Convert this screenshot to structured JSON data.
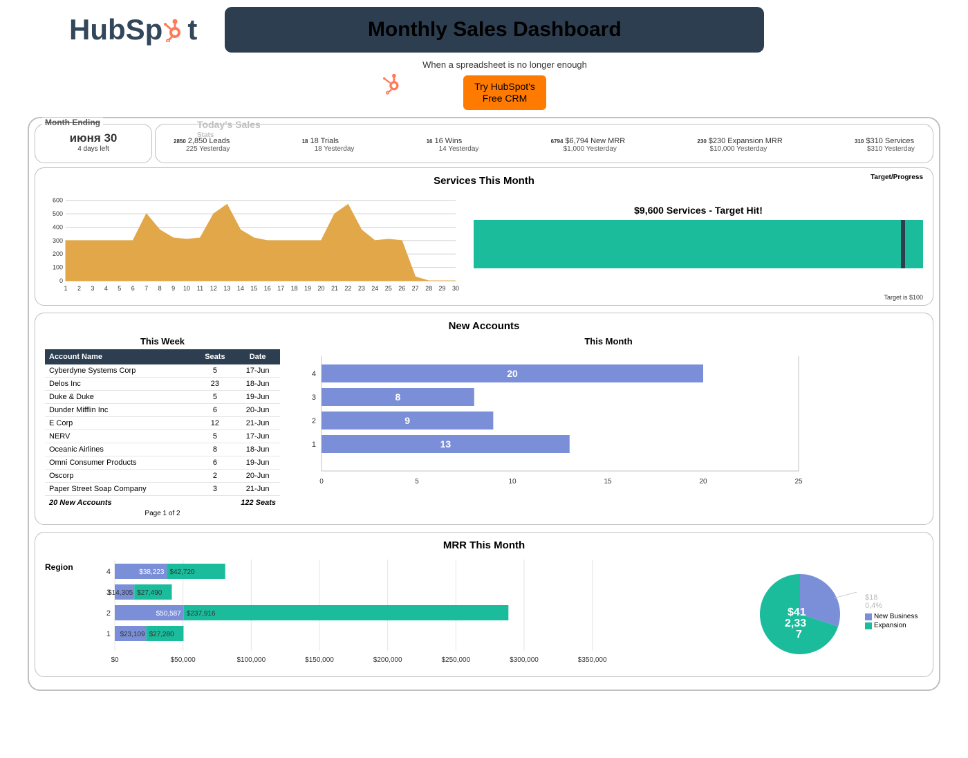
{
  "header": {
    "logo_text_1": "HubSp",
    "logo_text_2": "t",
    "title": "Monthly Sales Dashboard",
    "tagline": "When a spreadsheet is no longer enough",
    "cta_line1": "Try HubSpot's",
    "cta_line2": "Free CRM",
    "brand_orange": "#ff7a59",
    "brand_dark": "#33475b",
    "banner_bg": "#2c3e50"
  },
  "month_ending": {
    "label": "Month Ending",
    "date": "июня 30",
    "days_left": "4 days left"
  },
  "stats_header": {
    "ghost_title": "Today's Sales",
    "ghost_sub": "Stats",
    "items": [
      {
        "badge": "2850",
        "main": "2,850 Leads",
        "sub": "225 Yesterday"
      },
      {
        "badge": "18",
        "main": "18 Trials",
        "sub": "18 Yesterday"
      },
      {
        "badge": "16",
        "main": "16 Wins",
        "sub": "14 Yesterday"
      },
      {
        "badge": "6794",
        "main": "$6,794 New MRR",
        "sub": "$1,000 Yesterday"
      },
      {
        "badge": "230",
        "main": "$230 Expansion MRR",
        "sub": "$10,000 Yesterday"
      },
      {
        "badge": "310",
        "main": "$310 Services",
        "sub": "$310 Yesterday"
      }
    ]
  },
  "services_panel": {
    "title": "Services This Month",
    "corner_label": "Target/Progress",
    "footnote": "Target is $100",
    "area_chart": {
      "type": "area",
      "fill_color": "#e1a748",
      "axis_color": "#808080",
      "grid_color": "#d0d0d0",
      "x_labels": [
        "1",
        "2",
        "3",
        "4",
        "5",
        "6",
        "7",
        "8",
        "9",
        "10",
        "11",
        "12",
        "13",
        "14",
        "15",
        "16",
        "17",
        "18",
        "19",
        "20",
        "21",
        "22",
        "23",
        "24",
        "25",
        "26",
        "27",
        "28",
        "29",
        "30"
      ],
      "y_ticks": [
        0,
        100,
        200,
        300,
        400,
        500,
        600
      ],
      "ylim": [
        0,
        650
      ],
      "values": [
        300,
        300,
        300,
        300,
        300,
        300,
        500,
        380,
        320,
        310,
        320,
        500,
        570,
        380,
        320,
        300,
        300,
        300,
        300,
        300,
        500,
        570,
        380,
        300,
        310,
        300,
        30,
        0,
        0,
        0
      ]
    },
    "progress": {
      "label": "$9,600 Services - Target Hit!",
      "fill_pct": 100,
      "marker_pct": 95,
      "fill_color": "#1abc9c",
      "marker_color": "#2c3e50"
    }
  },
  "accounts_panel": {
    "title": "New Accounts",
    "this_week_label": "This Week",
    "this_month_label": "This Month",
    "table": {
      "columns": [
        "Account Name",
        "Seats",
        "Date"
      ],
      "rows": [
        [
          "Cyberdyne Systems Corp",
          "5",
          "17-Jun"
        ],
        [
          "Delos Inc",
          "23",
          "18-Jun"
        ],
        [
          "Duke & Duke",
          "5",
          "19-Jun"
        ],
        [
          "Dunder Mifflin Inc",
          "6",
          "20-Jun"
        ],
        [
          "E Corp",
          "12",
          "21-Jun"
        ],
        [
          "NERV",
          "5",
          "17-Jun"
        ],
        [
          "Oceanic Airlines",
          "8",
          "18-Jun"
        ],
        [
          "Omni Consumer Products",
          "6",
          "19-Jun"
        ],
        [
          "Oscorp",
          "2",
          "20-Jun"
        ],
        [
          "Paper Street Soap Company",
          "3",
          "21-Jun"
        ]
      ],
      "footer_left": "20 New Accounts",
      "footer_right": "122 Seats",
      "page_text": "Page 1 of 2",
      "header_bg": "#2c3e50"
    },
    "bar_chart": {
      "type": "bar-horizontal",
      "bar_color": "#7b8fd9",
      "grid_color": "#d0d0d0",
      "xlim": [
        0,
        25
      ],
      "xticks": [
        0,
        5,
        10,
        15,
        20,
        25
      ],
      "categories": [
        "4",
        "3",
        "2",
        "1"
      ],
      "values": [
        20,
        8,
        9,
        13
      ]
    }
  },
  "mrr_panel": {
    "title": "MRR This Month",
    "region_label": "Region",
    "stacked_chart": {
      "type": "stacked-bar-horizontal",
      "colors": {
        "new_business": "#7b8fd9",
        "expansion": "#1abc9c"
      },
      "xlim": [
        0,
        375000
      ],
      "xticks": [
        "$0",
        "$50,000",
        "$100,000",
        "$150,000",
        "$200,000",
        "$250,000",
        "$300,000",
        "$350,000"
      ],
      "xtick_vals": [
        0,
        50000,
        100000,
        150000,
        200000,
        250000,
        300000,
        350000
      ],
      "categories": [
        "4",
        "3",
        "2",
        "1"
      ],
      "series": [
        {
          "nb": 38223,
          "nb_label": "$38,223",
          "exp": 42720,
          "exp_label": "$42,720"
        },
        {
          "nb": 14305,
          "nb_label": "$14,305",
          "exp": 27490,
          "exp_label": "$27,490"
        },
        {
          "nb": 50587,
          "nb_label": "$50,587",
          "exp": 237916,
          "exp_label": "$237,916"
        },
        {
          "nb": 23109,
          "nb_label": "$23,109",
          "exp": 27280,
          "exp_label": "$27,280"
        }
      ]
    },
    "pie": {
      "type": "pie",
      "slices": [
        {
          "label": "New Business",
          "value": 30,
          "color": "#7b8fd9"
        },
        {
          "label": "Expansion",
          "value": 70,
          "color": "#1abc9c"
        }
      ],
      "callout_small_1": "$18",
      "callout_small_2": "0,4%",
      "center_label_1": "$41",
      "center_label_2": "2,33",
      "center_label_3": "7",
      "legend": [
        "New Business",
        "Expansion"
      ]
    }
  }
}
